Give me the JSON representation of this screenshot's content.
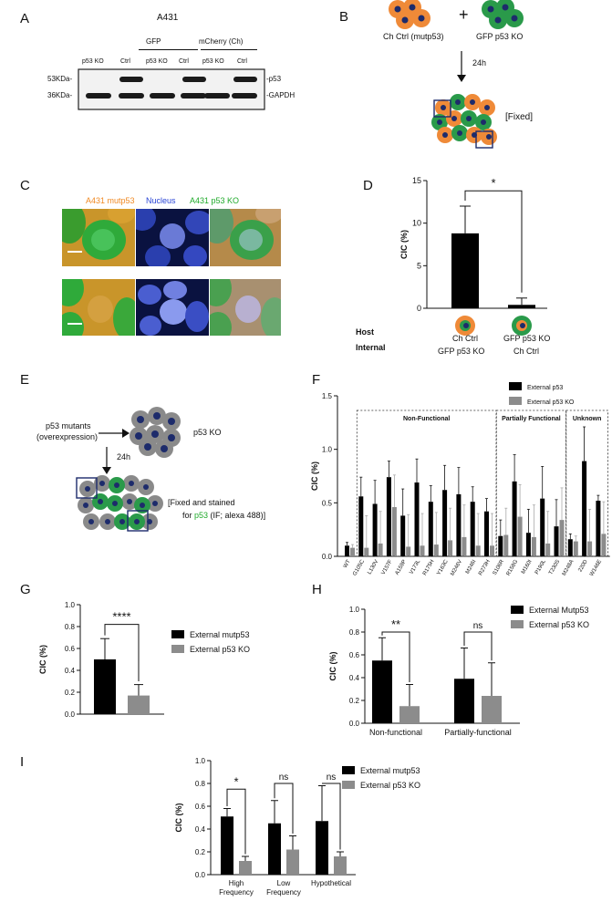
{
  "panel_labels": {
    "A": "A",
    "B": "B",
    "C": "C",
    "D": "D",
    "E": "E",
    "F": "F",
    "G": "G",
    "H": "H",
    "I": "I"
  },
  "panelA": {
    "title": "A431",
    "lane_labels": [
      "p53 KO",
      "Ctrl",
      "p53 KO",
      "Ctrl",
      "p53 KO",
      "Ctrl"
    ],
    "group_gfp": "GFP",
    "group_mcherry": "mCherry (Ch)",
    "mw_53": "53KDa-",
    "mw_36": "36KDa-",
    "band_p53": "-p53",
    "band_gapdh": "-GAPDH"
  },
  "panelB": {
    "plus": "+",
    "label_left": "Ch Ctrl (mutp53)",
    "label_right": "GFP p53 KO",
    "time": "24h",
    "fixed": "[Fixed]"
  },
  "panelC": {
    "label_mutp53": "A431 mutp53",
    "label_nucleus": "Nucleus",
    "label_ko": "A431 p53 KO",
    "colors": {
      "mutp53": "#f08a24",
      "nucleus": "#2a45d6",
      "ko": "#1faa2a"
    }
  },
  "panelD": {
    "ylabel": "CIC (%)",
    "yticks": [
      "0",
      "5",
      "10",
      "15"
    ],
    "sig": "*",
    "host_label": "Host",
    "internal_label": "Internal",
    "host_values": [
      "Ch Ctrl",
      "GFP p53 KO"
    ],
    "internal_values": [
      "GFP p53 KO",
      "Ch Ctrl"
    ]
  },
  "panelE": {
    "text_mutants": "p53 mutants",
    "text_overexp": "(overexpression)",
    "text_ko": "p53 KO",
    "time": "24h",
    "fixed_line1": "[Fixed and stained",
    "fixed_line2_a": "for ",
    "fixed_line2_p53": "p53",
    "fixed_line2_b": " (IF; alexa 488)]"
  },
  "panelF": {
    "ylabel": "CIC (%)",
    "yticks": [
      "0.0",
      "0.5",
      "1.0",
      "1.5"
    ],
    "legend": [
      "External p53",
      "External p53 KO"
    ],
    "box_labels": [
      "Non-Functional",
      "Partially Functional",
      "Unknown"
    ]
  },
  "panelG": {
    "ylabel": "CIC (%)",
    "yticks": [
      "0.0",
      "0.2",
      "0.4",
      "0.6",
      "0.8",
      "1.0"
    ],
    "sig": "****",
    "legend": [
      "External mutp53",
      "External p53 KO"
    ]
  },
  "panelH": {
    "ylabel": "CIC (%)",
    "yticks": [
      "0.0",
      "0.2",
      "0.4",
      "0.6",
      "0.8",
      "1.0"
    ],
    "sig": [
      "**",
      "ns"
    ],
    "legend": [
      "External Mutp53",
      "External p53 KO"
    ],
    "categories": [
      "Non-functional",
      "Partially-functional"
    ]
  },
  "panelI": {
    "ylabel": "CIC (%)",
    "yticks": [
      "0.0",
      "0.2",
      "0.4",
      "0.6",
      "0.8",
      "1.0"
    ],
    "sig": [
      "*",
      "ns",
      "ns"
    ],
    "legend": [
      "External mutp53",
      "External p53 KO"
    ],
    "cat_line1": [
      "High",
      "Low",
      "Hypothetical"
    ],
    "cat_line2": [
      "Frequency",
      "Frequency",
      ""
    ]
  },
  "chart_data": [
    {
      "panel": "D",
      "type": "bar",
      "categories": [
        "Ch Ctrl / GFP p53 KO",
        "GFP p53 KO / Ch Ctrl"
      ],
      "values": [
        8.8,
        0.4
      ],
      "errors": [
        3.2,
        0.8
      ],
      "ylabel": "CIC (%)",
      "ylim": [
        0,
        15
      ]
    },
    {
      "panel": "F",
      "type": "bar",
      "categories": [
        "WT",
        "G105C",
        "L130V",
        "V157F",
        "A159P",
        "V173L",
        "R175H",
        "Y163C",
        "M246V",
        "M246I",
        "R273H",
        "S106R",
        "R158G",
        "M160I",
        "P190L",
        "T230S",
        "M248A",
        "220D",
        "W146E"
      ],
      "series": [
        {
          "name": "External p53",
          "values": [
            0.1,
            0.56,
            0.49,
            0.74,
            0.38,
            0.69,
            0.51,
            0.62,
            0.58,
            0.51,
            0.42,
            0.19,
            0.7,
            0.22,
            0.54,
            0.28,
            0.16,
            0.89,
            0.52
          ],
          "errors": [
            0.03,
            0.18,
            0.22,
            0.15,
            0.25,
            0.22,
            0.15,
            0.23,
            0.25,
            0.14,
            0.12,
            0.15,
            0.25,
            0.22,
            0.3,
            0.25,
            0.05,
            0.32,
            0.05
          ]
        },
        {
          "name": "External p53 KO",
          "values": [
            0.08,
            0.08,
            0.12,
            0.46,
            0.09,
            0.1,
            0.11,
            0.15,
            0.18,
            0.1,
            0.1,
            0.2,
            0.37,
            0.18,
            0.12,
            0.34,
            0.14,
            0.14,
            0.21
          ],
          "errors": [
            0.03,
            0.3,
            0.3,
            0.3,
            0.3,
            0.3,
            0.3,
            0.3,
            0.3,
            0.3,
            0.3,
            0.25,
            0.3,
            0.3,
            0.3,
            0.3,
            0.05,
            0.3,
            0.3
          ]
        }
      ],
      "ylabel": "CIC (%)",
      "ylim": [
        0,
        1.5
      ]
    },
    {
      "panel": "G",
      "type": "bar",
      "categories": [
        "External mutp53",
        "External p53 KO"
      ],
      "values": [
        0.5,
        0.17
      ],
      "errors": [
        0.19,
        0.1
      ],
      "ylabel": "CIC (%)",
      "ylim": [
        0,
        1.0
      ]
    },
    {
      "panel": "H",
      "type": "bar",
      "categories": [
        "Non-functional",
        "Partially-functional"
      ],
      "series": [
        {
          "name": "External Mutp53",
          "values": [
            0.55,
            0.39
          ],
          "errors": [
            0.2,
            0.27
          ]
        },
        {
          "name": "External p53 KO",
          "values": [
            0.15,
            0.24
          ],
          "errors": [
            0.19,
            0.29
          ]
        }
      ],
      "ylabel": "CIC (%)",
      "ylim": [
        0,
        1.0
      ]
    },
    {
      "panel": "I",
      "type": "bar",
      "categories": [
        "High Frequency",
        "Low Frequency",
        "Hypothetical"
      ],
      "series": [
        {
          "name": "External mutp53",
          "values": [
            0.51,
            0.45,
            0.47
          ],
          "errors": [
            0.07,
            0.2,
            0.31
          ]
        },
        {
          "name": "External p53 KO",
          "values": [
            0.12,
            0.22,
            0.16
          ],
          "errors": [
            0.04,
            0.12,
            0.04
          ]
        }
      ],
      "ylabel": "CIC (%)",
      "ylim": [
        0,
        1.0
      ]
    }
  ]
}
